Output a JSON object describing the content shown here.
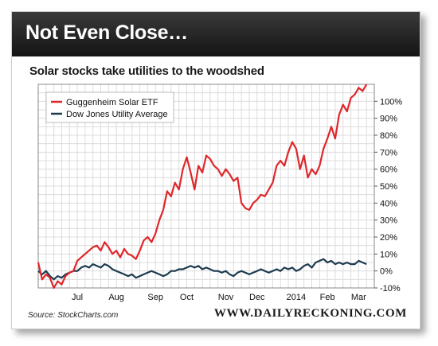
{
  "header": {
    "title": "Not Even Close…"
  },
  "subtitle": "Solar stocks take utilities to the woodshed",
  "source": "Source: StockCharts.com",
  "brand": "WWW.DAILYRECKONING.COM",
  "chart_data": {
    "type": "line",
    "title": "Solar stocks take utilities to the woodshed",
    "xlabel": "",
    "ylabel": "",
    "ylim": [
      -10,
      110
    ],
    "yticks": [
      -10,
      0,
      10,
      20,
      30,
      40,
      50,
      60,
      70,
      80,
      90,
      100
    ],
    "ytick_labels": [
      "-10%",
      "0%",
      "10%",
      "20%",
      "30%",
      "40%",
      "50%",
      "60%",
      "70%",
      "80%",
      "90%",
      "100%"
    ],
    "xlim": [
      0,
      43
    ],
    "xticks": [
      5,
      10,
      15,
      19,
      24,
      28,
      33,
      37,
      41
    ],
    "xtick_labels": [
      "Jul",
      "Aug",
      "Sep",
      "Oct",
      "Nov",
      "Dec",
      "2014",
      "Feb",
      "Mar"
    ],
    "grid": true,
    "legend": "top-left",
    "series": [
      {
        "name": "Guggenheim Solar ETF",
        "color": "#e0262a",
        "x": [
          0,
          0.5,
          1,
          1.5,
          2,
          2.5,
          3,
          3.5,
          4,
          4.5,
          5,
          5.5,
          6,
          6.5,
          7,
          7.5,
          8,
          8.5,
          9,
          9.5,
          10,
          10.5,
          11,
          11.5,
          12,
          12.5,
          13,
          13.5,
          14,
          14.5,
          15,
          15.5,
          16,
          16.5,
          17,
          17.5,
          18,
          18.5,
          19,
          19.5,
          20,
          20.5,
          21,
          21.5,
          22,
          22.5,
          23,
          23.5,
          24,
          24.5,
          25,
          25.5,
          26,
          26.5,
          27,
          27.5,
          28,
          28.5,
          29,
          29.5,
          30,
          30.5,
          31,
          31.5,
          32,
          32.5,
          33,
          33.5,
          34,
          34.5,
          35,
          35.5,
          36,
          36.5,
          37,
          37.5,
          38,
          38.5,
          39,
          39.5,
          40,
          40.5,
          41,
          41.5,
          42
        ],
        "values": [
          5,
          -5,
          -2,
          -4,
          -10,
          -6,
          -8,
          -3,
          -1,
          0,
          6,
          8,
          10,
          12,
          14,
          15,
          12,
          17,
          14,
          10,
          12,
          8,
          13,
          10,
          9,
          7,
          12,
          18,
          20,
          17,
          22,
          30,
          36,
          47,
          44,
          52,
          48,
          60,
          67,
          58,
          48,
          62,
          58,
          68,
          66,
          62,
          60,
          56,
          60,
          57,
          53,
          55,
          40,
          37,
          36,
          40,
          42,
          45,
          44,
          48,
          52,
          62,
          65,
          62,
          70,
          76,
          72,
          60,
          68,
          55,
          60,
          57,
          62,
          72,
          78,
          85,
          78,
          92,
          98,
          94,
          102,
          104,
          108,
          106,
          110
        ]
      },
      {
        "name": "Dow Jones Utility Average",
        "color": "#1c3a4e",
        "x": [
          0,
          0.5,
          1,
          1.5,
          2,
          2.5,
          3,
          3.5,
          4,
          4.5,
          5,
          5.5,
          6,
          6.5,
          7,
          7.5,
          8,
          8.5,
          9,
          9.5,
          10,
          10.5,
          11,
          11.5,
          12,
          12.5,
          13,
          13.5,
          14,
          14.5,
          15,
          15.5,
          16,
          16.5,
          17,
          17.5,
          18,
          18.5,
          19,
          19.5,
          20,
          20.5,
          21,
          21.5,
          22,
          22.5,
          23,
          23.5,
          24,
          24.5,
          25,
          25.5,
          26,
          26.5,
          27,
          27.5,
          28,
          28.5,
          29,
          29.5,
          30,
          30.5,
          31,
          31.5,
          32,
          32.5,
          33,
          33.5,
          34,
          34.5,
          35,
          35.5,
          36,
          36.5,
          37,
          37.5,
          38,
          38.5,
          39,
          39.5,
          40,
          40.5,
          41,
          41.5,
          42
        ],
        "values": [
          0,
          -2,
          0,
          -3,
          -5,
          -3,
          -4,
          -2,
          -1,
          0,
          0,
          2,
          3,
          2,
          4,
          3,
          2,
          4,
          3,
          1,
          0,
          -1,
          -2,
          -3,
          -2,
          -4,
          -3,
          -2,
          -1,
          0,
          -1,
          -2,
          -3,
          -2,
          0,
          0,
          1,
          1,
          2,
          3,
          2,
          3,
          1,
          2,
          1,
          0,
          0,
          -1,
          0,
          -2,
          -3,
          -1,
          0,
          -1,
          -2,
          -1,
          0,
          1,
          0,
          -1,
          0,
          1,
          0,
          2,
          1,
          2,
          0,
          1,
          3,
          4,
          2,
          5,
          6,
          7,
          5,
          6,
          4,
          5,
          4,
          5,
          4,
          4,
          6,
          5,
          4
        ]
      }
    ]
  }
}
